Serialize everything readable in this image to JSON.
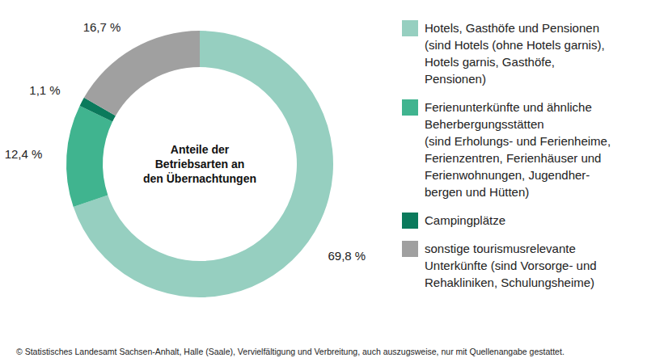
{
  "chart_data": {
    "type": "donut",
    "title": "Anteile der\nBetriebsarten an\nden Übernachtungen",
    "categories": [
      "Hotels, Gasthöfe und Pensionen\n(sind Hotels (ohne Hotels garnis),\nHotels garnis, Gasthöfe,\nPensionen)",
      "Ferienunterkünfte und ähnliche\nBeherbergungsstätten\n(sind Erholungs- und Ferienheime,\nFerienzentren, Ferienhäuser und\nFerienwohnungen, Jugendher-\nbergen und Hütten)",
      "Campingplätze",
      "sonstige tourismusrelevante\nUnterkünfte (sind Vorsorge- und\nRehakliniken, Schulungsheime)"
    ],
    "values": [
      69.8,
      12.4,
      1.1,
      16.7
    ],
    "value_labels": [
      "69,8 %",
      "12,4 %",
      "1,1 %",
      "16,7 %"
    ],
    "colors": [
      "#96cfc0",
      "#40b48f",
      "#0b7a5c",
      "#a0a0a0"
    ],
    "data_labels": true,
    "legend": "right",
    "source": "© Statistisches Landesamt Sachsen-Anhalt, Halle (Saale), Vervielfältigung und Verbreitung, auch auszugsweise, nur mit Quellenangabe gestattet."
  }
}
